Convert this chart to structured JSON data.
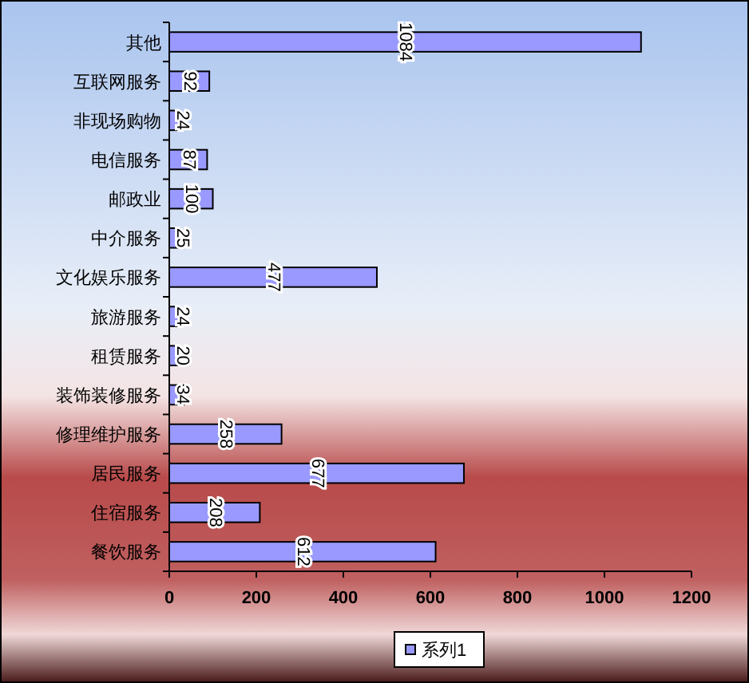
{
  "chart_data": {
    "type": "bar",
    "orientation": "horizontal",
    "categories": [
      "其他",
      "互联网服务",
      "非现场购物",
      "电信服务",
      "邮政业",
      "中介服务",
      "文化娱乐服务",
      "旅游服务",
      "租赁服务",
      "装饰装修服务",
      "修理维护服务",
      "居民服务",
      "住宿服务",
      "餐饮服务"
    ],
    "series": [
      {
        "name": "系列1",
        "color": "#9999ff",
        "values": [
          1084,
          92,
          24,
          87,
          100,
          25,
          477,
          24,
          20,
          34,
          258,
          677,
          208,
          612
        ]
      }
    ],
    "xlim": [
      0,
      1200
    ],
    "xticks": [
      0,
      200,
      400,
      600,
      800,
      1000,
      1200
    ],
    "data_labels": true,
    "legend": "bottom",
    "grid": false
  }
}
